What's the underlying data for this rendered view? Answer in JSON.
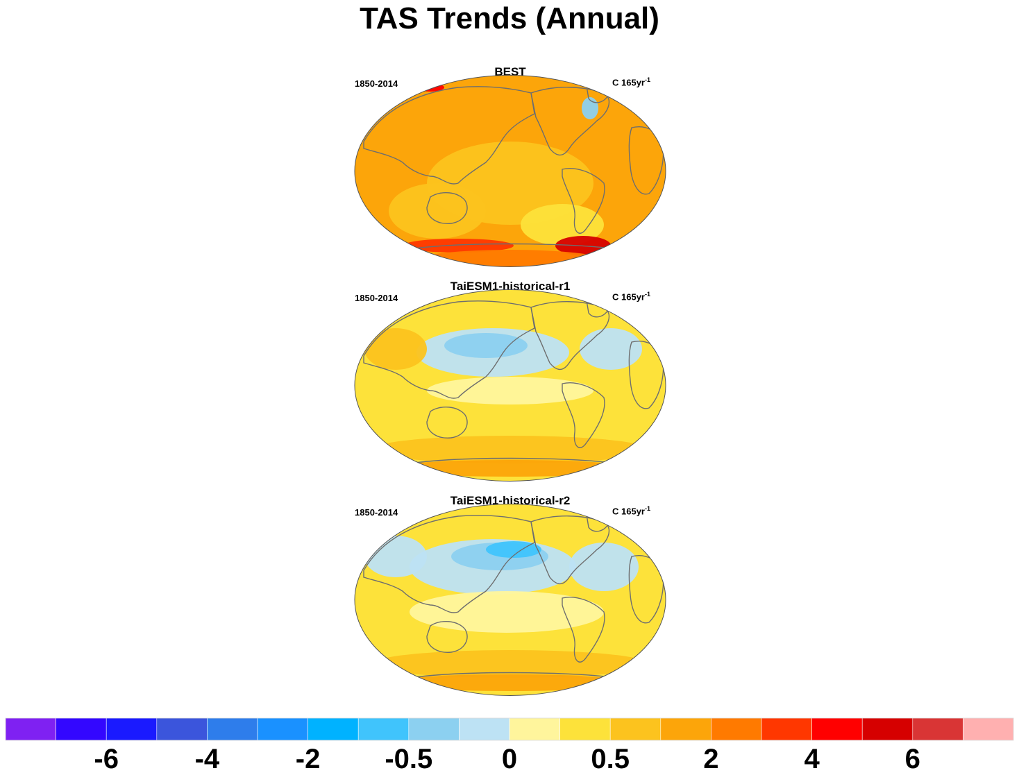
{
  "title": "TAS Trends (Annual)",
  "chart_data": {
    "type": "heatmap",
    "projection": "Robinson",
    "units_label": "C 165yr",
    "units_exponent": "-1",
    "panels": [
      {
        "title": "BEST",
        "left_label": "1850-2014",
        "right_label": "C 165yr",
        "right_exp": "-1",
        "dominant_colors": [
          "#fca50a",
          "#fcc31e",
          "#ff7a00",
          "#ff2a00"
        ],
        "features": [
          {
            "region": "North Atlantic south of Greenland",
            "color": "#8cc8ec"
          },
          {
            "region": "Antarctic coast",
            "color": "#ff2a00"
          },
          {
            "region": "Weddell Sea",
            "color": "#d60000"
          }
        ]
      },
      {
        "title": "TaiESM1-historical-r1",
        "left_label": "1850-2014",
        "right_label": "C 165yr",
        "right_exp": "-1",
        "dominant_colors": [
          "#fde23a",
          "#fcc31e",
          "#fff59c",
          "#bde2f4"
        ],
        "features": [
          {
            "region": "North Pacific",
            "color": "#8cc8ec"
          },
          {
            "region": "North Atlantic",
            "color": "#8cc8ec"
          },
          {
            "region": "Southern Ocean",
            "color": "#fca50a"
          }
        ]
      },
      {
        "title": "TaiESM1-historical-r2",
        "left_label": "1850-2014",
        "right_label": "C 165yr",
        "right_exp": "-1",
        "dominant_colors": [
          "#fde23a",
          "#fff59c",
          "#bde2f4",
          "#fcc31e"
        ],
        "features": [
          {
            "region": "North Pacific",
            "color": "#5ab4ec"
          },
          {
            "region": "North Atlantic",
            "color": "#8cc8ec"
          },
          {
            "region": "Southern Ocean",
            "color": "#fca50a"
          }
        ]
      }
    ],
    "colorbar": {
      "colors": [
        "#7f21f2",
        "#3307ff",
        "#1a1aff",
        "#3b55dc",
        "#2e7deb",
        "#1a91ff",
        "#00b2ff",
        "#40c4fc",
        "#8cd0f0",
        "#bde2f4",
        "#fff59c",
        "#fde23a",
        "#fcc31e",
        "#fca50a",
        "#ff7a00",
        "#ff3700",
        "#ff0000",
        "#d60000",
        "#d93535",
        "#ffb0b0"
      ],
      "tick_labels": [
        "-6",
        "-4",
        "-2",
        "-0.5",
        "0",
        "0.5",
        "2",
        "4",
        "6"
      ],
      "tick_label_boundaries": [
        2,
        4,
        6,
        8,
        10,
        12,
        14,
        16,
        18
      ]
    }
  }
}
